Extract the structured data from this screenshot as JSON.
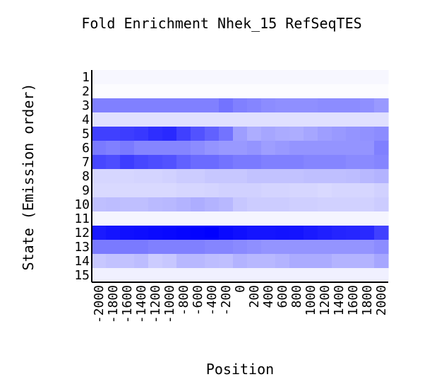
{
  "chart_data": {
    "type": "heatmap",
    "title": "Fold Enrichment Nhek_15 RefSeqTES",
    "xlabel": "Position",
    "ylabel": "State (Emission order)",
    "x": [
      "-2000",
      "-1800",
      "-1600",
      "-1400",
      "-1200",
      "-1000",
      "-800",
      "-600",
      "-400",
      "-200",
      "0",
      "200",
      "400",
      "600",
      "800",
      "1000",
      "1200",
      "1400",
      "1600",
      "1800",
      "2000"
    ],
    "y": [
      "1",
      "2",
      "3",
      "4",
      "5",
      "6",
      "7",
      "8",
      "9",
      "10",
      "11",
      "12",
      "13",
      "14",
      "15"
    ],
    "colormap": {
      "low": "#ffffff",
      "high": "#0000ff"
    },
    "values": [
      [
        0.03,
        0.03,
        0.03,
        0.03,
        0.03,
        0.03,
        0.03,
        0.03,
        0.03,
        0.03,
        0.03,
        0.03,
        0.03,
        0.03,
        0.03,
        0.03,
        0.03,
        0.03,
        0.03,
        0.03,
        0.03
      ],
      [
        0.01,
        0.01,
        0.01,
        0.01,
        0.01,
        0.01,
        0.01,
        0.01,
        0.01,
        0.01,
        0.01,
        0.01,
        0.01,
        0.01,
        0.01,
        0.01,
        0.01,
        0.01,
        0.01,
        0.01,
        0.01
      ],
      [
        0.5,
        0.5,
        0.5,
        0.5,
        0.5,
        0.5,
        0.5,
        0.5,
        0.5,
        0.55,
        0.5,
        0.48,
        0.45,
        0.44,
        0.44,
        0.44,
        0.45,
        0.45,
        0.45,
        0.44,
        0.4
      ],
      [
        0.12,
        0.12,
        0.12,
        0.12,
        0.12,
        0.12,
        0.12,
        0.12,
        0.12,
        0.12,
        0.12,
        0.12,
        0.12,
        0.12,
        0.12,
        0.12,
        0.12,
        0.12,
        0.12,
        0.12,
        0.12
      ],
      [
        0.75,
        0.75,
        0.76,
        0.78,
        0.82,
        0.84,
        0.75,
        0.68,
        0.62,
        0.55,
        0.38,
        0.32,
        0.35,
        0.33,
        0.32,
        0.35,
        0.38,
        0.4,
        0.42,
        0.43,
        0.45
      ],
      [
        0.52,
        0.5,
        0.52,
        0.48,
        0.48,
        0.48,
        0.48,
        0.45,
        0.42,
        0.4,
        0.4,
        0.42,
        0.38,
        0.4,
        0.42,
        0.42,
        0.42,
        0.42,
        0.42,
        0.42,
        0.5
      ],
      [
        0.72,
        0.7,
        0.76,
        0.72,
        0.7,
        0.68,
        0.62,
        0.58,
        0.58,
        0.55,
        0.52,
        0.52,
        0.5,
        0.5,
        0.5,
        0.48,
        0.48,
        0.48,
        0.46,
        0.46,
        0.48
      ],
      [
        0.16,
        0.16,
        0.16,
        0.17,
        0.17,
        0.18,
        0.2,
        0.2,
        0.22,
        0.22,
        0.22,
        0.24,
        0.24,
        0.24,
        0.24,
        0.25,
        0.25,
        0.25,
        0.26,
        0.28,
        0.3
      ],
      [
        0.15,
        0.15,
        0.15,
        0.15,
        0.15,
        0.15,
        0.16,
        0.16,
        0.17,
        0.18,
        0.18,
        0.18,
        0.17,
        0.17,
        0.16,
        0.16,
        0.15,
        0.16,
        0.16,
        0.16,
        0.18
      ],
      [
        0.25,
        0.26,
        0.25,
        0.25,
        0.27,
        0.28,
        0.3,
        0.32,
        0.3,
        0.28,
        0.22,
        0.2,
        0.2,
        0.2,
        0.19,
        0.19,
        0.18,
        0.18,
        0.18,
        0.18,
        0.2
      ],
      [
        0.04,
        0.04,
        0.04,
        0.04,
        0.04,
        0.04,
        0.04,
        0.04,
        0.04,
        0.04,
        0.04,
        0.04,
        0.04,
        0.04,
        0.04,
        0.04,
        0.04,
        0.04,
        0.04,
        0.04,
        0.04
      ],
      [
        0.9,
        0.92,
        0.94,
        0.95,
        0.96,
        0.97,
        0.98,
        0.99,
        1.0,
        0.96,
        0.94,
        0.92,
        0.92,
        0.93,
        0.92,
        0.9,
        0.88,
        0.86,
        0.85,
        0.84,
        0.75
      ],
      [
        0.52,
        0.52,
        0.52,
        0.52,
        0.5,
        0.5,
        0.5,
        0.5,
        0.48,
        0.48,
        0.46,
        0.44,
        0.42,
        0.42,
        0.42,
        0.42,
        0.42,
        0.42,
        0.42,
        0.42,
        0.45
      ],
      [
        0.22,
        0.24,
        0.24,
        0.26,
        0.2,
        0.22,
        0.28,
        0.28,
        0.26,
        0.25,
        0.3,
        0.28,
        0.28,
        0.3,
        0.33,
        0.33,
        0.33,
        0.3,
        0.3,
        0.3,
        0.35
      ],
      [
        0.06,
        0.06,
        0.06,
        0.06,
        0.06,
        0.06,
        0.06,
        0.06,
        0.06,
        0.06,
        0.06,
        0.06,
        0.06,
        0.06,
        0.06,
        0.06,
        0.06,
        0.06,
        0.06,
        0.06,
        0.06
      ]
    ]
  }
}
